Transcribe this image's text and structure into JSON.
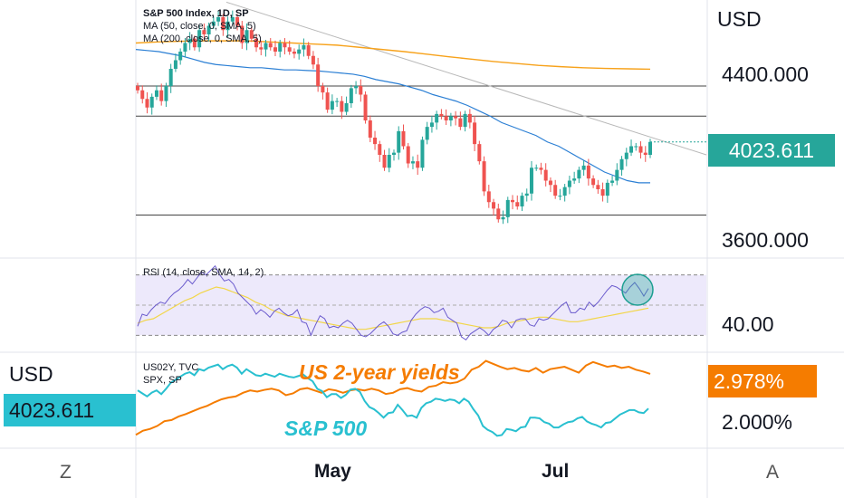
{
  "colors": {
    "up": "#26a69a",
    "down": "#ef5350",
    "ma50": "#2b7fd4",
    "ma200": "#f7a21b",
    "rsi": "#6a5acd",
    "rsi_ma": "#f2d648",
    "yields": "#f57c00",
    "spx": "#29c0d0",
    "price_badge": "#26a69a",
    "yield_badge": "#f57c00",
    "spx_badge": "#29c0d0"
  },
  "main_pane": {
    "title": "S&P 500 Index, 1D, SP",
    "ma50_label": "MA (50, close, 0, SMA, 5)",
    "ma200_label": "MA (200, close, 0, SMA, 5)",
    "currency": "USD",
    "price_badge": "4023.611",
    "axis_labels": [
      "4400.000",
      "3600.000"
    ]
  },
  "rsi_pane": {
    "title": "RSI (14, close, SMA, 14, 2)",
    "axis_label": "40.00"
  },
  "compare_pane": {
    "line1": "US02Y, TVC",
    "line2": "SPX, SP",
    "left_currency": "USD",
    "left_badge": "4023.611",
    "yield_badge": "2.978%",
    "axis_label": "2.000%",
    "annotation_yields": "US 2-year yields",
    "annotation_spx": "S&P 500"
  },
  "time_axis": {
    "labels": [
      "May",
      "Jul"
    ],
    "left_button": "Z",
    "right_button": "A"
  },
  "chart_data": [
    {
      "type": "candlestick",
      "title": "S&P 500 Index, 1D, SP",
      "ylim": [
        3500,
        4700
      ],
      "y_ticks": [
        4400,
        3600
      ],
      "x_labels": [
        "May",
        "Jul"
      ],
      "horizontal_levels": [
        4300,
        4160,
        3700
      ],
      "closes": [
        4280,
        4240,
        4200,
        4250,
        4280,
        4230,
        4300,
        4380,
        4420,
        4460,
        4500,
        4520,
        4480,
        4560,
        4540,
        4580,
        4600,
        4620,
        4560,
        4600,
        4620,
        4580,
        4500,
        4560,
        4520,
        4480,
        4470,
        4500,
        4480,
        4460,
        4500,
        4480,
        4460,
        4450,
        4470,
        4490,
        4440,
        4400,
        4300,
        4270,
        4190,
        4230,
        4230,
        4180,
        4220,
        4290,
        4300,
        4260,
        4140,
        4060,
        4030,
        3980,
        3920,
        3980,
        3990,
        4090,
        4020,
        3940,
        3950,
        3920,
        4050,
        4110,
        4130,
        4170,
        4160,
        4140,
        4160,
        4150,
        4110,
        4170,
        4130,
        4030,
        3950,
        3810,
        3760,
        3730,
        3680,
        3690,
        3770,
        3760,
        3740,
        3790,
        3800,
        3920,
        3920,
        3910,
        3860,
        3840,
        3790,
        3790,
        3830,
        3860,
        3870,
        3910,
        3930,
        3870,
        3840,
        3820,
        3790,
        3850,
        3860,
        3910,
        3960,
        3990,
        4020,
        4020,
        3990,
        3980,
        4040
      ],
      "ma50": [
        4470,
        4465,
        4460,
        4450,
        4440,
        4425,
        4410,
        4400,
        4395,
        4390,
        4385,
        4385,
        4380,
        4375,
        4375,
        4372,
        4370,
        4365,
        4360,
        4355,
        4345,
        4330,
        4320,
        4310,
        4295,
        4280,
        4260,
        4245,
        4230,
        4210,
        4185,
        4160,
        4130,
        4110,
        4090,
        4070,
        4040,
        4020,
        3990,
        3960,
        3930,
        3900,
        3880,
        3860,
        3850,
        3850
      ],
      "ma200": [
        4500,
        4505,
        4508,
        4510,
        4510,
        4510,
        4505,
        4500,
        4495,
        4490,
        4480,
        4470,
        4460,
        4448,
        4436,
        4425,
        4414,
        4405,
        4396,
        4390,
        4385,
        4382,
        4380,
        4378
      ],
      "trendline": {
        "from": 4690,
        "to": 3980
      }
    },
    {
      "type": "line",
      "title": "RSI (14, close, SMA, 14, 2)",
      "ylim": [
        20,
        80
      ],
      "y_ticks": [
        40
      ],
      "band": [
        30,
        70
      ],
      "series": [
        {
          "name": "RSI (14, close, SMA, 14, 2)",
          "values": [
            36,
            44,
            43,
            47,
            50,
            52,
            51,
            55,
            58,
            60,
            63,
            67,
            64,
            68,
            72,
            70,
            73,
            76,
            70,
            66,
            67,
            64,
            58,
            55,
            52,
            49,
            44,
            47,
            45,
            42,
            46,
            48,
            45,
            43,
            44,
            47,
            39,
            38,
            30,
            37,
            43,
            41,
            35,
            36,
            35,
            38,
            40,
            38,
            34,
            30,
            29,
            31,
            34,
            37,
            39,
            36,
            31,
            30,
            32,
            33,
            40,
            44,
            47,
            49,
            48,
            45,
            46,
            48,
            42,
            40,
            38,
            29,
            27,
            31,
            33,
            35,
            33,
            30,
            34,
            36,
            40,
            39,
            35,
            40,
            41,
            41,
            37,
            36,
            41,
            40,
            41,
            44,
            47,
            50,
            52,
            45,
            45,
            48,
            47,
            52,
            49,
            52,
            56,
            60,
            63,
            62,
            60,
            58,
            62,
            65,
            61,
            56,
            61
          ]
        },
        {
          "name": "",
          "values": [
            38,
            40,
            41,
            44,
            47,
            50,
            53,
            55,
            58,
            60,
            62,
            61,
            59,
            57,
            55,
            52,
            50,
            47,
            45,
            43,
            42,
            41,
            40,
            39,
            38,
            37,
            36,
            35,
            34,
            34,
            35,
            36,
            37,
            38,
            39,
            40,
            41,
            41,
            41,
            40,
            39,
            38,
            37,
            36,
            35,
            35,
            36,
            38,
            39,
            40,
            41,
            42,
            42,
            41,
            40,
            39,
            39,
            40,
            41,
            42,
            43,
            44,
            45,
            46,
            47,
            48
          ]
        }
      ]
    },
    {
      "type": "line",
      "title": "",
      "ylim": [
        1.8,
        3.3
      ],
      "y_ticks": [
        2.0
      ],
      "x_labels": [
        "May",
        "Jul"
      ],
      "series": [
        {
          "name": "US02Y, TVC",
          "values": [
            1.95,
            2.02,
            2.05,
            2.1,
            2.18,
            2.2,
            2.26,
            2.3,
            2.35,
            2.4,
            2.44,
            2.5,
            2.55,
            2.58,
            2.6,
            2.66,
            2.7,
            2.68,
            2.71,
            2.73,
            2.7,
            2.62,
            2.65,
            2.72,
            2.74,
            2.7,
            2.66,
            2.72,
            2.7,
            2.66,
            2.7,
            2.72,
            2.7,
            2.73,
            2.7,
            2.64,
            2.66,
            2.72,
            2.74,
            2.7,
            2.68,
            2.76,
            2.78,
            2.84,
            2.82,
            2.84,
            2.9,
            3.05,
            3.1,
            3.2,
            3.15,
            3.1,
            3.06,
            3.08,
            3.04,
            3.02,
            3.08,
            3.0,
            3.06,
            3.08,
            3.1,
            3.05,
            3.0,
            3.12,
            3.18,
            3.14,
            3.1,
            3.12,
            3.08,
            3.1,
            3.05,
            3.02,
            2.98
          ]
        },
        {
          "name": "SPX, SP",
          "values": [
            4280,
            4240,
            4200,
            4250,
            4280,
            4230,
            4300,
            4380,
            4420,
            4460,
            4500,
            4520,
            4480,
            4560,
            4540,
            4580,
            4600,
            4620,
            4560,
            4600,
            4620,
            4580,
            4500,
            4560,
            4520,
            4480,
            4470,
            4500,
            4480,
            4460,
            4500,
            4480,
            4460,
            4450,
            4470,
            4490,
            4440,
            4400,
            4300,
            4270,
            4190,
            4230,
            4230,
            4180,
            4220,
            4290,
            4300,
            4260,
            4140,
            4060,
            4030,
            3980,
            3920,
            3980,
            3990,
            4090,
            4020,
            3940,
            3950,
            3920,
            4050,
            4110,
            4130,
            4170,
            4160,
            4140,
            4160,
            4150,
            4110,
            4170,
            4130,
            4030,
            3950,
            3810,
            3760,
            3730,
            3680,
            3690,
            3770,
            3760,
            3740,
            3790,
            3800,
            3920,
            3920,
            3910,
            3860,
            3840,
            3790,
            3790,
            3830,
            3860,
            3870,
            3910,
            3930,
            3870,
            3840,
            3820,
            3790,
            3850,
            3860,
            3910,
            3960,
            3990,
            4020,
            4020,
            3990,
            3980,
            4040
          ]
        }
      ]
    }
  ]
}
